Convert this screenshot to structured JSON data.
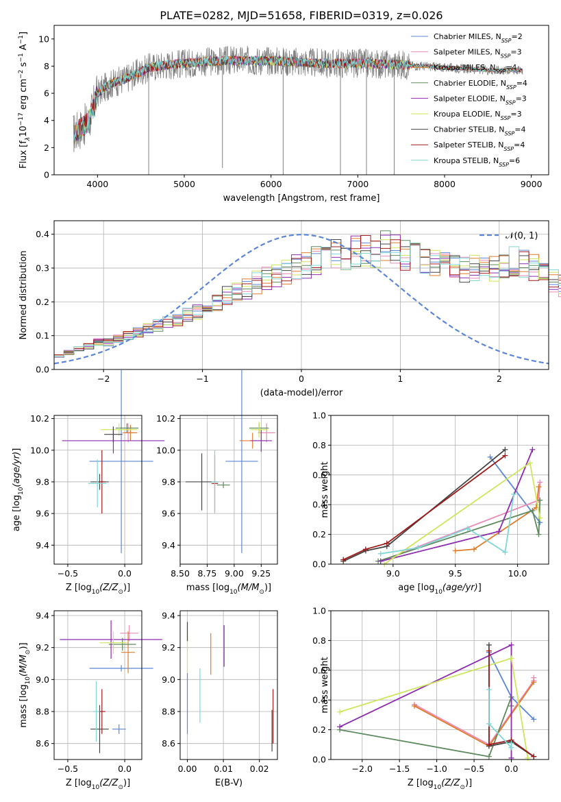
{
  "title": "PLATE=0282, MJD=51658, FIBERID=0319, z=0.026",
  "colors": {
    "Chabrier MILES": "#5b86d8",
    "Salpeter MILES": "#e98ab6",
    "Kroupa MILES": "#e07b2a",
    "Chabrier ELODIE": "#5d8a5d",
    "Salpeter ELODIE": "#8e2ab0",
    "Kroupa ELODIE": "#cde65a",
    "Chabrier STELIB": "#444444",
    "Salpeter STELIB": "#a01818",
    "Kroupa STELIB": "#7fd6d6",
    "data": "#808080",
    "gauss": "#5b86d8"
  },
  "chart_data": [
    {
      "type": "line",
      "title": "PLATE=0282, MJD=51658, FIBERID=0319, z=0.026",
      "xlabel": "wavelength [Angstrom, rest frame]",
      "ylabel": "Flux [f",
      "xlim": [
        3500,
        9200
      ],
      "ylim": [
        0,
        11
      ],
      "xticks": [
        "4000",
        "5000",
        "6000",
        "7000",
        "8000",
        "9000"
      ],
      "yticks": [
        "0",
        "2",
        "4",
        "6",
        "8",
        "10"
      ],
      "grid": false,
      "legend_position": "top-right",
      "legend": [
        {
          "name": "Chabrier MILES",
          "nssp": "2"
        },
        {
          "name": "Salpeter MILES",
          "nssp": "3"
        },
        {
          "name": "Kroupa MILES",
          "nssp": "4"
        },
        {
          "name": "Chabrier ELODIE",
          "nssp": "4"
        },
        {
          "name": "Salpeter ELODIE",
          "nssp": "3"
        },
        {
          "name": "Kroupa ELODIE",
          "nssp": "3"
        },
        {
          "name": "Chabrier STELIB",
          "nssp": "4"
        },
        {
          "name": "Salpeter STELIB",
          "nssp": "4"
        },
        {
          "name": "Kroupa STELIB",
          "nssp": "6"
        }
      ],
      "continuum": {
        "x": [
          3720,
          3800,
          3900,
          4000,
          4100,
          4200,
          4300,
          4400,
          4500,
          4600,
          4800,
          5000,
          5200,
          5500,
          5800,
          6000,
          6300,
          6600,
          7000,
          7500,
          8000,
          8500,
          8900
        ],
        "y": [
          3.0,
          3.4,
          3.9,
          6.0,
          6.5,
          6.8,
          7.0,
          7.3,
          7.6,
          7.9,
          8.1,
          8.2,
          8.3,
          8.4,
          8.4,
          8.4,
          8.3,
          8.2,
          8.2,
          8.1,
          7.9,
          7.7,
          7.7
        ]
      },
      "spikes": [
        {
          "x": 4590,
          "ymin": 0.0
        },
        {
          "x": 5440,
          "ymin": 0.5
        },
        {
          "x": 6140,
          "ymin": 0.0
        },
        {
          "x": 6800,
          "ymin": 0.0
        },
        {
          "x": 7100,
          "ymin": 0.0
        },
        {
          "x": 7420,
          "ymin": 0.0
        }
      ]
    },
    {
      "type": "area",
      "xlabel": "(data-model)/error",
      "ylabel": "Normed distribution",
      "xlim": [
        -2.5,
        2.5
      ],
      "ylim": [
        0,
        0.44
      ],
      "xticks": [
        "−2",
        "−1",
        "0",
        "1",
        "2"
      ],
      "yticks": [
        "0.0",
        "0.1",
        "0.2",
        "0.3",
        "0.4"
      ],
      "grid": true,
      "legend_position": "top-right",
      "legend": [
        {
          "name": "𝒩(0, 1)"
        }
      ],
      "bins": {
        "start": -2.5,
        "width": 0.1
      },
      "histogram_base": [
        0.04,
        0.05,
        0.06,
        0.07,
        0.08,
        0.08,
        0.09,
        0.1,
        0.11,
        0.12,
        0.13,
        0.14,
        0.15,
        0.16,
        0.17,
        0.19,
        0.2,
        0.22,
        0.23,
        0.24,
        0.26,
        0.27,
        0.28,
        0.29,
        0.3,
        0.31,
        0.32,
        0.33,
        0.34,
        0.34,
        0.35,
        0.35,
        0.35,
        0.36,
        0.35,
        0.34,
        0.33,
        0.33,
        0.32,
        0.32,
        0.31,
        0.3,
        0.3,
        0.29,
        0.3,
        0.31,
        0.32,
        0.31,
        0.3,
        0.28,
        0.26,
        0.25,
        0.23,
        0.21,
        0.19,
        0.18,
        0.16,
        0.14,
        0.13,
        0.12,
        0.11,
        0.1,
        0.1,
        0.09,
        0.08,
        0.08,
        0.07,
        0.07,
        0.06,
        0.06,
        0.05,
        0.05,
        0.05,
        0.04,
        0.04,
        0.04,
        0.04,
        0.03,
        0.03,
        0.03
      ],
      "gaussian": {
        "mean": 0,
        "sigma": 1
      }
    },
    {
      "type": "scatter",
      "xlabel": "Z [log",
      "ylabel": "age  [log",
      "xlim": [
        -0.62,
        0.15
      ],
      "ylim": [
        9.28,
        10.22
      ],
      "xticks": [
        "−0.5",
        "0.0"
      ],
      "yticks": [
        "9.4",
        "9.6",
        "9.8",
        "10.0",
        "10.2"
      ],
      "grid": true,
      "points": [
        {
          "series": "Chabrier MILES",
          "x": -0.03,
          "y": 9.93,
          "xerr": 0.28,
          "yerr": 0.58
        },
        {
          "series": "Salpeter MILES",
          "x": 0.03,
          "y": 10.11,
          "xerr": 0.05,
          "yerr": 0.06
        },
        {
          "series": "Kroupa MILES",
          "x": 0.05,
          "y": 10.11,
          "xerr": 0.06,
          "yerr": 0.05
        },
        {
          "series": "Chabrier ELODIE",
          "x": 0.02,
          "y": 10.14,
          "xerr": 0.1,
          "yerr": 0.03
        },
        {
          "series": "Salpeter ELODIE",
          "x": -0.1,
          "y": 10.06,
          "xerr": 0.45,
          "yerr": 0.08
        },
        {
          "series": "Kroupa ELODIE",
          "x": -0.05,
          "y": 10.13,
          "xerr": 0.16,
          "yerr": 0.04
        },
        {
          "series": "Chabrier STELIB",
          "x": -0.1,
          "y": 10.1,
          "xerr": 0.08,
          "yerr": 0.05
        },
        {
          "series": "Chabrier STELIB",
          "x": -0.22,
          "y": 9.8,
          "xerr": 0.08,
          "yerr": 0.05
        },
        {
          "series": "Salpeter STELIB",
          "x": -0.2,
          "y": 9.8,
          "xerr": 0.03,
          "yerr": 0.2
        },
        {
          "series": "Kroupa STELIB",
          "x": -0.24,
          "y": 9.79,
          "xerr": 0.08,
          "yerr": 0.15
        }
      ]
    },
    {
      "type": "scatter",
      "xlabel": "mass [log",
      "ylabel": "",
      "xlim": [
        8.5,
        9.4
      ],
      "ylim": [
        9.28,
        10.22
      ],
      "xticks": [
        "8.50",
        "8.75",
        "9.00",
        "9.25"
      ],
      "yticks": [
        "9.4",
        "9.6",
        "9.8",
        "10.0",
        "10.2"
      ],
      "grid": true,
      "points": [
        {
          "series": "Chabrier MILES",
          "x": 9.07,
          "y": 9.93,
          "xerr": 0.15,
          "yerr": 0.58
        },
        {
          "series": "Salpeter MILES",
          "x": 9.3,
          "y": 10.11,
          "xerr": 0.08,
          "yerr": 0.06
        },
        {
          "series": "Kroupa MILES",
          "x": 9.17,
          "y": 10.06,
          "xerr": 0.12,
          "yerr": 0.05
        },
        {
          "series": "Chabrier ELODIE",
          "x": 9.23,
          "y": 10.14,
          "xerr": 0.09,
          "yerr": 0.03
        },
        {
          "series": "Salpeter ELODIE",
          "x": 9.25,
          "y": 10.06,
          "xerr": 0.1,
          "yerr": 0.07
        },
        {
          "series": "Kroupa ELODIE",
          "x": 9.23,
          "y": 10.13,
          "xerr": 0.08,
          "yerr": 0.05
        },
        {
          "series": "Chabrier STELIB",
          "x": 8.7,
          "y": 9.8,
          "xerr": 0.15,
          "yerr": 0.18
        },
        {
          "series": "Salpeter STELIB",
          "x": 8.82,
          "y": 9.79,
          "xerr": 0.03,
          "yerr": 0.18
        },
        {
          "series": "Kroupa STELIB",
          "x": 8.82,
          "y": 9.8,
          "xerr": 0.03,
          "yerr": 0.2
        },
        {
          "series": "Chabrier ELODIE",
          "x": 8.9,
          "y": 9.78,
          "xerr": 0.06,
          "yerr": 0.02
        }
      ]
    },
    {
      "type": "line",
      "xlabel": "age  [log",
      "ylabel": "mass weight",
      "xlim": [
        8.5,
        10.25
      ],
      "ylim": [
        0,
        1
      ],
      "xticks": [
        "9.0",
        "9.5",
        "10.0"
      ],
      "yticks": [
        "0.0",
        "0.2",
        "0.4",
        "0.6",
        "0.8",
        "1.0"
      ],
      "grid": true,
      "series": [
        {
          "name": "Chabrier MILES",
          "x": [
            9.78,
            10.18
          ],
          "y": [
            0.72,
            0.28
          ]
        },
        {
          "name": "Salpeter MILES",
          "x": [
            8.9,
            10.17,
            10.18
          ],
          "y": [
            0.02,
            0.43,
            0.55
          ]
        },
        {
          "name": "Kroupa MILES",
          "x": [
            9.5,
            9.65,
            10.15,
            10.17
          ],
          "y": [
            0.09,
            0.1,
            0.38,
            0.52
          ]
        },
        {
          "name": "Chabrier ELODIE",
          "x": [
            8.88,
            10.12,
            10.17,
            10.18
          ],
          "y": [
            0.02,
            0.36,
            0.2,
            0.43
          ]
        },
        {
          "name": "Salpeter ELODIE",
          "x": [
            8.9,
            9.85,
            10.12
          ],
          "y": [
            0.02,
            0.22,
            0.77
          ]
        },
        {
          "name": "Kroupa ELODIE",
          "x": [
            8.93,
            10.1,
            10.18
          ],
          "y": [
            0.0,
            0.68,
            0.31
          ]
        },
        {
          "name": "Chabrier STELIB",
          "x": [
            8.6,
            8.78,
            8.95,
            9.9
          ],
          "y": [
            0.02,
            0.09,
            0.12,
            0.77
          ]
        },
        {
          "name": "Salpeter STELIB",
          "x": [
            8.6,
            8.78,
            8.95,
            9.9
          ],
          "y": [
            0.03,
            0.1,
            0.14,
            0.73
          ]
        },
        {
          "name": "Kroupa STELIB",
          "x": [
            8.9,
            9.2,
            9.6,
            9.9,
            9.97
          ],
          "y": [
            0.07,
            0.11,
            0.24,
            0.08,
            0.47
          ]
        }
      ]
    },
    {
      "type": "scatter",
      "xlabel": "Z [log",
      "ylabel": "mass [log",
      "xlim": [
        -0.62,
        0.15
      ],
      "ylim": [
        8.5,
        9.43
      ],
      "xticks": [
        "−0.5",
        "0.0"
      ],
      "yticks": [
        "8.6",
        "8.8",
        "9.0",
        "9.2",
        "9.4"
      ],
      "grid": true,
      "points": [
        {
          "series": "Chabrier MILES",
          "x": -0.03,
          "y": 9.07,
          "xerr": 0.28,
          "yerr": 0.02
        },
        {
          "series": "Chabrier MILES",
          "x": -0.05,
          "y": 8.69,
          "xerr": 0.06,
          "yerr": 0.03
        },
        {
          "series": "Salpeter MILES",
          "x": 0.04,
          "y": 9.29,
          "xerr": 0.08,
          "yerr": 0.05
        },
        {
          "series": "Kroupa MILES",
          "x": 0.03,
          "y": 9.17,
          "xerr": 0.06,
          "yerr": 0.13
        },
        {
          "series": "Chabrier ELODIE",
          "x": -0.02,
          "y": 9.22,
          "xerr": 0.12,
          "yerr": 0.04
        },
        {
          "series": "Salpeter ELODIE",
          "x": -0.12,
          "y": 9.25,
          "xerr": 0.45,
          "yerr": 0.12
        },
        {
          "series": "Kroupa ELODIE",
          "x": -0.1,
          "y": 9.23,
          "xerr": 0.12,
          "yerr": 0.07
        },
        {
          "series": "Chabrier STELIB",
          "x": -0.22,
          "y": 8.69,
          "xerr": 0.08,
          "yerr": 0.15
        },
        {
          "series": "Salpeter STELIB",
          "x": -0.2,
          "y": 8.8,
          "xerr": 0.03,
          "yerr": 0.14
        },
        {
          "series": "Kroupa STELIB",
          "x": -0.25,
          "y": 8.8,
          "xerr": 0.03,
          "yerr": 0.19
        }
      ]
    },
    {
      "type": "scatter",
      "xlabel": "E(B-V)",
      "ylabel": "",
      "xlim": [
        -0.002,
        0.025
      ],
      "ylim": [
        8.5,
        9.43
      ],
      "xticks": [
        "0.00",
        "0.01",
        "0.02"
      ],
      "yticks": [
        "8.6",
        "8.8",
        "9.0",
        "9.2",
        "9.4"
      ],
      "grid": true,
      "points": [
        {
          "series": "Chabrier MILES",
          "x": 0.0,
          "y": 8.85,
          "xerr": 0,
          "yerr": 0.19
        },
        {
          "series": "Kroupa ELODIE",
          "x": 0.0,
          "y": 9.17,
          "xerr": 0,
          "yerr": 0.13
        },
        {
          "series": "Chabrier STELIB",
          "x": 0.0,
          "y": 9.3,
          "xerr": 0,
          "yerr": 0.06
        },
        {
          "series": "Kroupa STELIB",
          "x": 0.0035,
          "y": 8.9,
          "xerr": 0,
          "yerr": 0.17
        },
        {
          "series": "Kroupa MILES",
          "x": 0.0065,
          "y": 9.16,
          "xerr": 0,
          "yerr": 0.13
        },
        {
          "series": "Salpeter ELODIE",
          "x": 0.0102,
          "y": 9.21,
          "xerr": 0,
          "yerr": 0.13
        },
        {
          "series": "Chabrier STELIB",
          "x": 0.0235,
          "y": 8.68,
          "xerr": 0,
          "yerr": 0.13
        },
        {
          "series": "Salpeter STELIB",
          "x": 0.0238,
          "y": 8.77,
          "xerr": 0,
          "yerr": 0.17
        }
      ]
    },
    {
      "type": "line",
      "xlabel": "Z [log",
      "ylabel": "mass weight",
      "xlim": [
        -2.42,
        0.5
      ],
      "ylim": [
        0,
        1
      ],
      "xticks": [
        "−2.0",
        "−1.5",
        "−1.0",
        "−0.5",
        "0.0"
      ],
      "yticks": [
        "0.0",
        "0.2",
        "0.4",
        "0.6",
        "0.8",
        "1.0"
      ],
      "grid": true,
      "series": [
        {
          "name": "Chabrier MILES",
          "x": [
            -0.3,
            0.0,
            0.3
          ],
          "y": [
            0.72,
            0.42,
            0.27
          ]
        },
        {
          "name": "Salpeter MILES",
          "x": [
            -1.3,
            -0.3,
            0.3,
            0.3
          ],
          "y": [
            0.37,
            0.1,
            0.53,
            0.55
          ]
        },
        {
          "name": "Kroupa MILES",
          "x": [
            -1.3,
            -0.3,
            0.3
          ],
          "y": [
            0.36,
            0.09,
            0.52
          ]
        },
        {
          "name": "Chabrier ELODIE",
          "x": [
            -2.3,
            -0.3,
            0.0,
            0.0
          ],
          "y": [
            0.2,
            0.02,
            0.42,
            0.36
          ]
        },
        {
          "name": "Salpeter ELODIE",
          "x": [
            -2.3,
            0.0,
            0.0
          ],
          "y": [
            0.22,
            0.77,
            0.01
          ]
        },
        {
          "name": "Kroupa ELODIE",
          "x": [
            -2.3,
            0.0,
            0.22
          ],
          "y": [
            0.32,
            0.68,
            0.01
          ]
        },
        {
          "name": "Chabrier STELIB",
          "x": [
            -0.3,
            -0.3,
            0.0,
            0.3
          ],
          "y": [
            0.77,
            0.09,
            0.12,
            0.02
          ]
        },
        {
          "name": "Salpeter STELIB",
          "x": [
            -0.3,
            -0.3,
            0.0,
            0.3
          ],
          "y": [
            0.73,
            0.1,
            0.13,
            0.02
          ]
        },
        {
          "name": "Kroupa STELIB",
          "x": [
            -0.3,
            -0.3,
            0.0,
            0.0
          ],
          "y": [
            0.47,
            0.24,
            0.08,
            0.11
          ]
        }
      ]
    }
  ]
}
